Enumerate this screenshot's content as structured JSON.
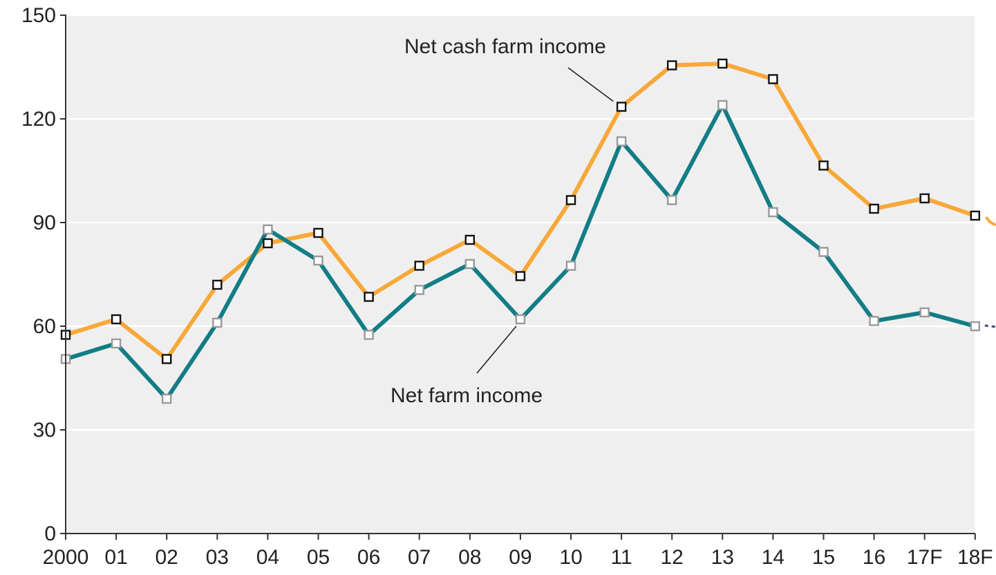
{
  "chart_data": {
    "type": "line",
    "categories": [
      "2000",
      "01",
      "02",
      "03",
      "04",
      "05",
      "06",
      "07",
      "08",
      "09",
      "10",
      "11",
      "12",
      "13",
      "14",
      "15",
      "16",
      "17F",
      "18F"
    ],
    "yticks": [
      "0",
      "30",
      "60",
      "90",
      "120",
      "150"
    ],
    "ylim": [
      0,
      150
    ],
    "grid": true,
    "series": [
      {
        "name": "Net cash farm income",
        "color": "#f7a838",
        "marker_fill": "#ffffff",
        "marker_stroke": "#111111",
        "values": [
          57.5,
          62,
          50.5,
          72,
          84,
          87,
          68.5,
          77.5,
          85,
          74.5,
          96.5,
          123.5,
          135.5,
          136,
          131.5,
          106.5,
          94,
          97,
          92
        ]
      },
      {
        "name": "Net farm income",
        "color": "#137d86",
        "marker_fill": "#ffffff",
        "marker_stroke": "#999999",
        "values": [
          50.5,
          55,
          39,
          61,
          88,
          79,
          57.5,
          70.5,
          78,
          62,
          77.5,
          113.5,
          96.5,
          124,
          93,
          81.5,
          61.5,
          64,
          60
        ]
      }
    ],
    "annotations": [
      {
        "text": "Net cash farm income",
        "series": 0,
        "point": 11
      },
      {
        "text": "Net farm income",
        "series": 1,
        "point": 9
      }
    ],
    "colors": {
      "plot_background": "#efefef",
      "gridline": "#ffffff",
      "axis": "#333333",
      "text": "#222222"
    }
  }
}
